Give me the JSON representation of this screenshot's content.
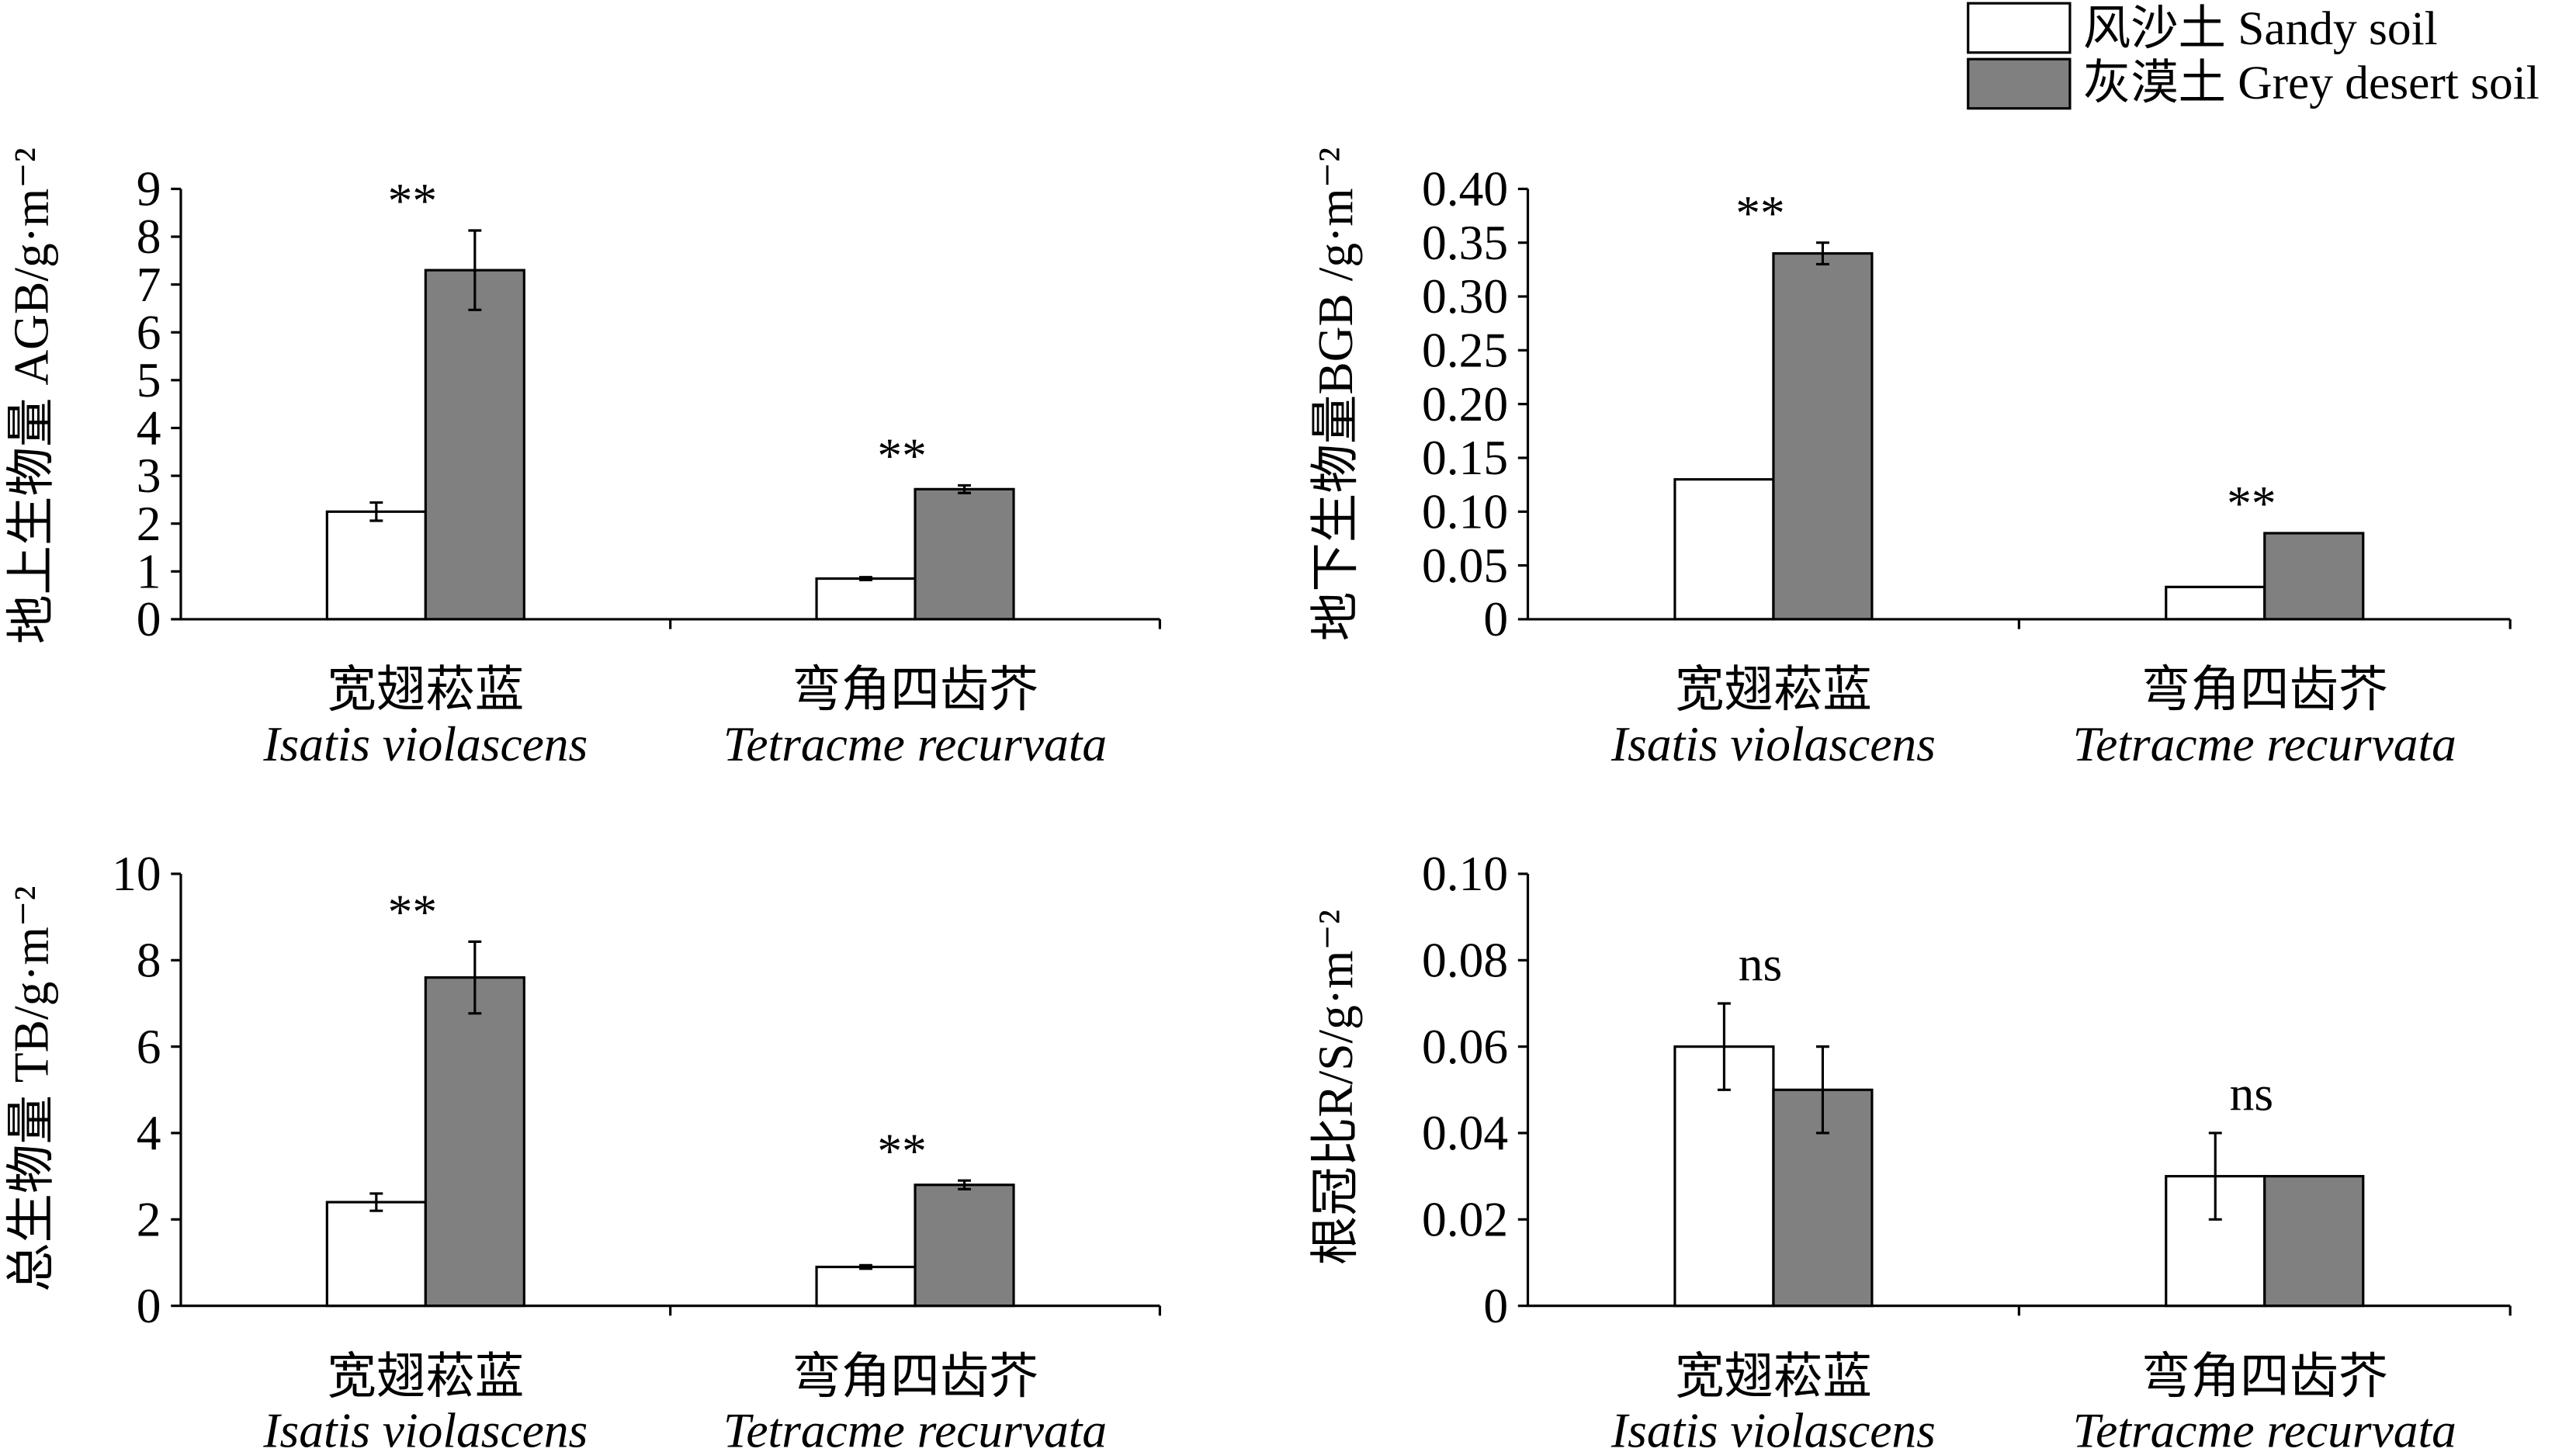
{
  "chart_data": [
    {
      "type": "bar",
      "legend": "top-right",
      "ylabel": "地上生物量 AGB/g·m⁻²",
      "categories": [
        "宽翅菘蓝",
        "弯角四齿芥"
      ],
      "categories_latin": [
        "Isatis violascens",
        "Tetracme recurvata"
      ],
      "series": [
        {
          "name": "风沙土 Sandy soil",
          "color": "#ffffff",
          "values": [
            2.25,
            0.85
          ],
          "errors": [
            0.19,
            0.03
          ]
        },
        {
          "name": "灰漠土 Grey desert soil",
          "color": "#808080",
          "values": [
            7.3,
            2.72
          ],
          "errors": [
            0.83,
            0.08
          ]
        }
      ],
      "significance": [
        "**",
        "**"
      ],
      "ylim": [
        0,
        9
      ],
      "yticks": [
        0,
        1,
        2,
        3,
        4,
        5,
        6,
        7,
        8,
        9
      ],
      "ytick_labels": [
        "0",
        "1",
        "2",
        "3",
        "4",
        "5",
        "6",
        "7",
        "8",
        "9"
      ],
      "grid": false
    },
    {
      "type": "bar",
      "ylabel": "地下生物量BGB /g·m⁻²",
      "categories": [
        "宽翅菘蓝",
        "弯角四齿芥"
      ],
      "categories_latin": [
        "Isatis violascens",
        "Tetracme recurvata"
      ],
      "series": [
        {
          "name": "风沙土 Sandy soil",
          "color": "#ffffff",
          "values": [
            0.13,
            0.03
          ],
          "errors": [
            0,
            0
          ]
        },
        {
          "name": "灰漠土 Grey desert soil",
          "color": "#808080",
          "values": [
            0.34,
            0.08
          ],
          "errors": [
            0.01,
            0
          ]
        }
      ],
      "significance": [
        "**",
        "**"
      ],
      "ylim": [
        0,
        0.4
      ],
      "yticks": [
        0,
        0.05,
        0.1,
        0.15,
        0.2,
        0.25,
        0.3,
        0.35,
        0.4
      ],
      "ytick_labels": [
        "0",
        "0.05",
        "0.10",
        "0.15",
        "0.20",
        "0.25",
        "0.30",
        "0.35",
        "0.40"
      ],
      "grid": false
    },
    {
      "type": "bar",
      "ylabel": "总生物量 TB/g·m⁻²",
      "categories": [
        "宽翅菘蓝",
        "弯角四齿芥"
      ],
      "categories_latin": [
        "Isatis violascens",
        "Tetracme recurvata"
      ],
      "series": [
        {
          "name": "风沙土 Sandy soil",
          "color": "#ffffff",
          "values": [
            2.4,
            0.9
          ],
          "errors": [
            0.2,
            0.04
          ]
        },
        {
          "name": "灰漠土 Grey desert soil",
          "color": "#808080",
          "values": [
            7.6,
            2.8
          ],
          "errors": [
            0.83,
            0.1
          ]
        }
      ],
      "significance": [
        "**",
        "**"
      ],
      "ylim": [
        0,
        10
      ],
      "yticks": [
        0,
        2,
        4,
        6,
        8,
        10
      ],
      "ytick_labels": [
        "0",
        "2",
        "4",
        "6",
        "8",
        "10"
      ],
      "grid": false
    },
    {
      "type": "bar",
      "ylabel": "根冠比R/S/g·m⁻²",
      "categories": [
        "宽翅菘蓝",
        "弯角四齿芥"
      ],
      "categories_latin": [
        "Isatis violascens",
        "Tetracme recurvata"
      ],
      "series": [
        {
          "name": "风沙土 Sandy soil",
          "color": "#ffffff",
          "values": [
            0.06,
            0.03
          ],
          "errors": [
            0.01,
            0.01
          ]
        },
        {
          "name": "灰漠土 Grey desert soil",
          "color": "#808080",
          "values": [
            0.05,
            0.03
          ],
          "errors": [
            0.01,
            0
          ]
        }
      ],
      "significance": [
        "ns",
        "ns"
      ],
      "ylim": [
        0,
        0.1
      ],
      "yticks": [
        0,
        0.02,
        0.04,
        0.06,
        0.08,
        0.1
      ],
      "ytick_labels": [
        "0",
        "0.02",
        "0.04",
        "0.06",
        "0.08",
        "0.10"
      ],
      "grid": false
    }
  ]
}
